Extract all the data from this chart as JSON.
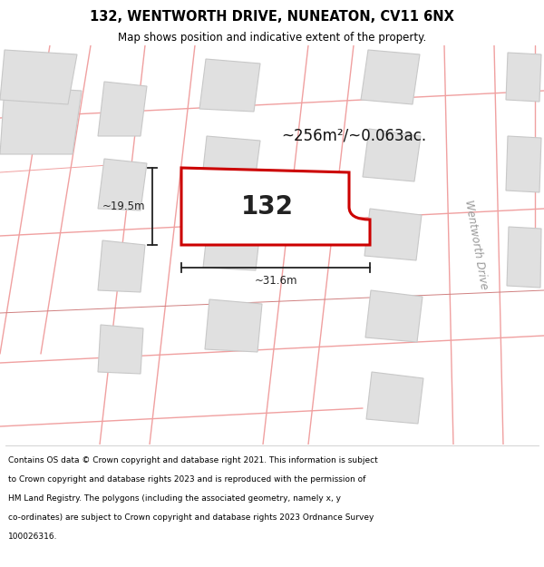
{
  "title_line1": "132, WENTWORTH DRIVE, NUNEATON, CV11 6NX",
  "title_line2": "Map shows position and indicative extent of the property.",
  "footer_lines": [
    "Contains OS data © Crown copyright and database right 2021. This information is subject",
    "to Crown copyright and database rights 2023 and is reproduced with the permission of",
    "HM Land Registry. The polygons (including the associated geometry, namely x, y",
    "co-ordinates) are subject to Crown copyright and database rights 2023 Ordnance Survey",
    "100026316."
  ],
  "area_label": "~256m²/~0.063ac.",
  "property_number": "132",
  "width_label": "~31.6m",
  "height_label": "~19.5m",
  "road_label": "Wentworth Drive",
  "map_bg": "#ffffff",
  "property_fill": "#ffffff",
  "property_edge": "#cc0000",
  "building_fill": "#e0e0e0",
  "building_edge": "#c8c8c8",
  "road_line_color": "#f0a0a0",
  "road_line_color2": "#d08080",
  "title_color": "#000000",
  "footer_color": "#000000",
  "dim_color": "#222222",
  "area_label_color": "#111111"
}
